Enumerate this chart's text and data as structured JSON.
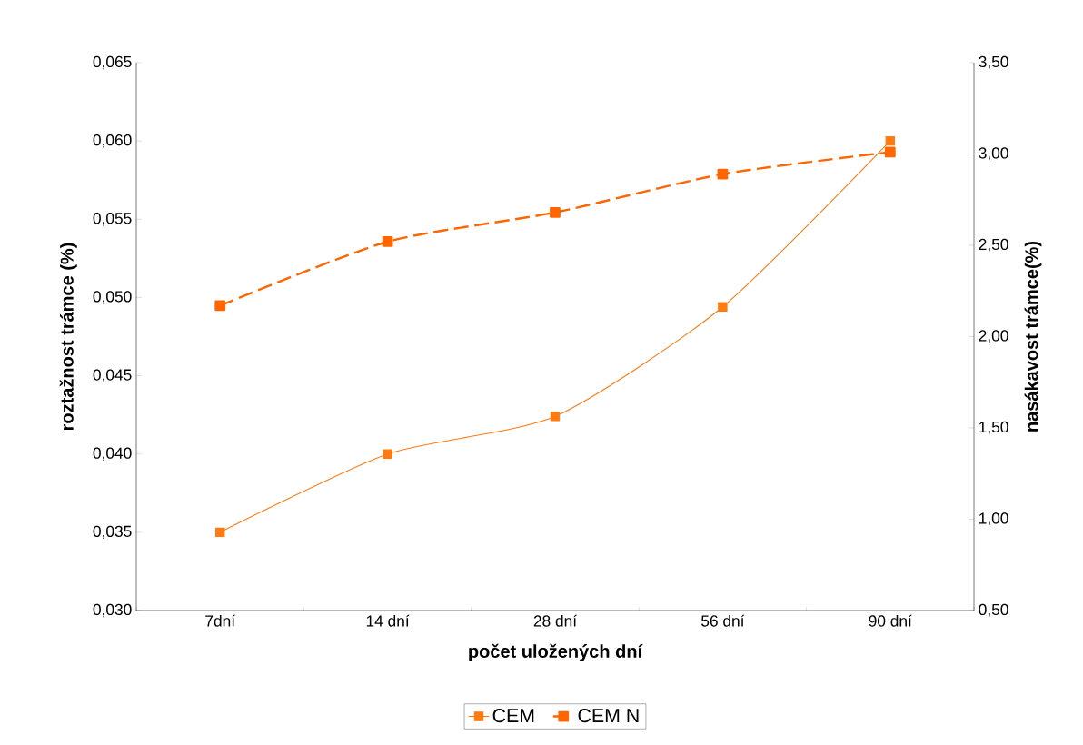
{
  "chart_data": {
    "type": "line",
    "xlabel": "počet uložených dní",
    "ylabel": "roztažnost trámce (%)",
    "y2label": "nasákavost trámce(%)",
    "categories": [
      "7dní",
      "14 dní",
      "28 dní",
      "56 dní",
      "90 dní"
    ],
    "series": [
      {
        "name": "CEM",
        "color": "#ff7a10",
        "values": [
          0.035,
          0.04,
          0.0424,
          0.0494,
          0.06
        ],
        "line_style": "solid"
      },
      {
        "name": "CEM N",
        "color": "#ff6600",
        "values": [
          2.17,
          2.52,
          2.68,
          2.89,
          3.01
        ],
        "axis": "y2",
        "line_style": "dashed"
      }
    ],
    "ylim": [
      0.03,
      0.065
    ],
    "yticks": [
      {
        "value": 0.03,
        "label": "0,030"
      },
      {
        "value": 0.035,
        "label": "0,035"
      },
      {
        "value": 0.04,
        "label": "0,040"
      },
      {
        "value": 0.045,
        "label": "0,045"
      },
      {
        "value": 0.05,
        "label": "0,050"
      },
      {
        "value": 0.055,
        "label": "0,055"
      },
      {
        "value": 0.06,
        "label": "0,060"
      },
      {
        "value": 0.065,
        "label": "0,065"
      }
    ],
    "y2lim": [
      0.5,
      3.5
    ],
    "y2ticks": [
      {
        "value": 0.5,
        "label": "0,50"
      },
      {
        "value": 1.0,
        "label": "1,00"
      },
      {
        "value": 1.5,
        "label": "1,50"
      },
      {
        "value": 2.0,
        "label": "2,00"
      },
      {
        "value": 2.5,
        "label": "2,50"
      },
      {
        "value": 3.0,
        "label": "3,00"
      },
      {
        "value": 3.5,
        "label": "3,50"
      }
    ],
    "grid": false,
    "legend": "bottom",
    "marker": "square"
  }
}
